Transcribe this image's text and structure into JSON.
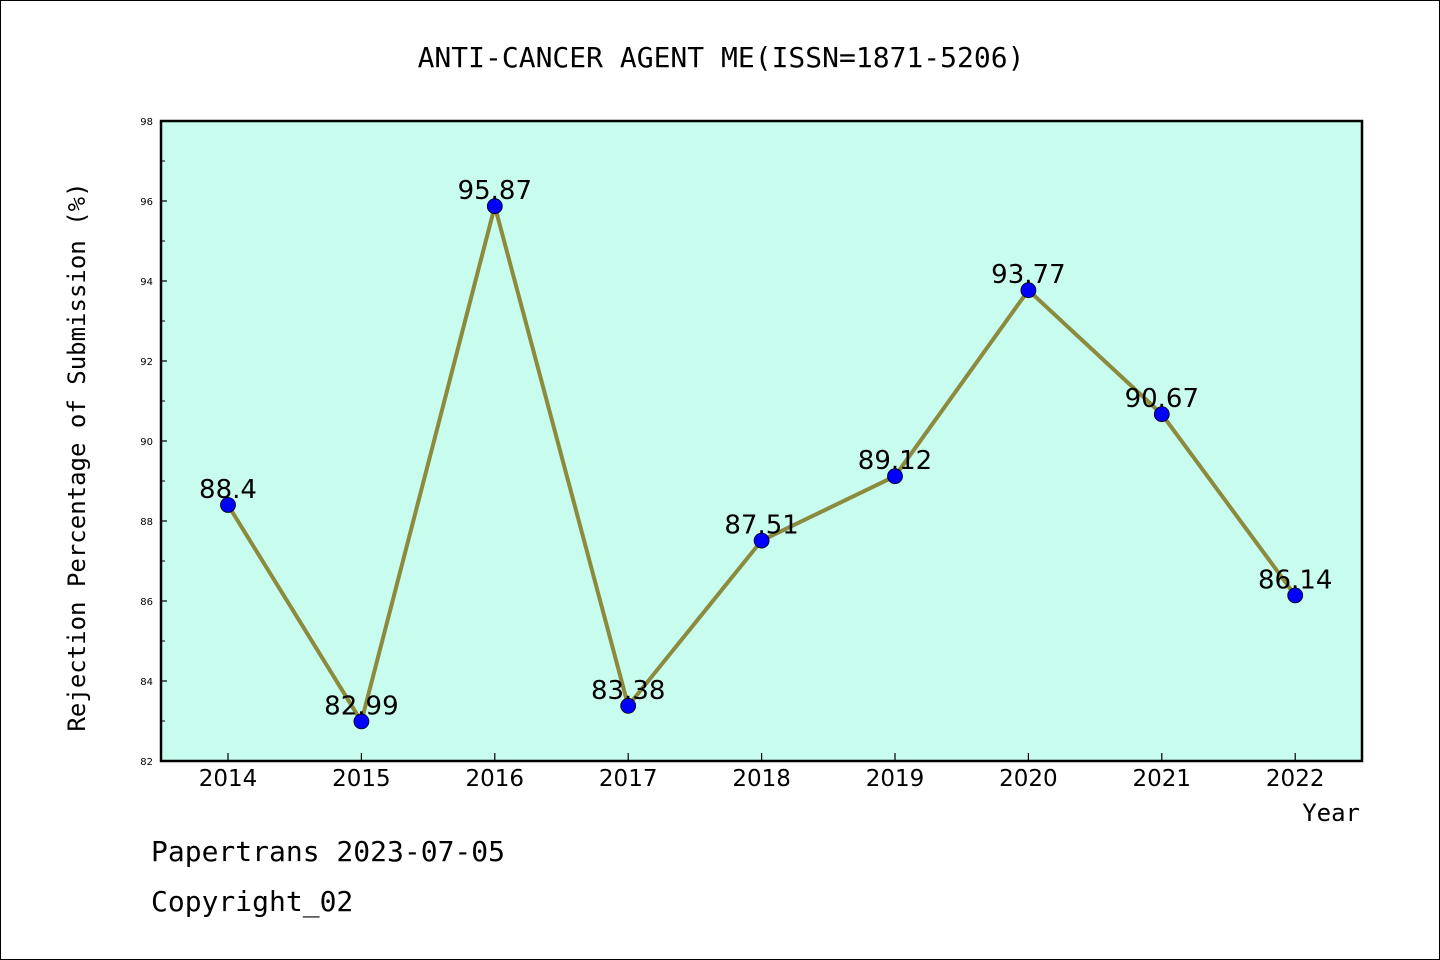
{
  "chart_data": {
    "type": "line",
    "title": "ANTI-CANCER AGENT ME(ISSN=1871-5206)",
    "xlabel": "Year",
    "ylabel": "Rejection Percentage of Submission (%)",
    "categories": [
      "2014",
      "2015",
      "2016",
      "2017",
      "2018",
      "2019",
      "2020",
      "2021",
      "2022"
    ],
    "values": [
      88.4,
      82.99,
      95.87,
      83.38,
      87.51,
      89.12,
      93.77,
      90.67,
      86.14
    ],
    "data_labels": [
      "88.4",
      "82.99",
      "95.87",
      "83.38",
      "87.51",
      "89.12",
      "93.77",
      "90.67",
      "86.14"
    ],
    "ylim": [
      82,
      98
    ],
    "y_ticks": [
      82,
      84,
      86,
      88,
      90,
      92,
      94,
      96,
      98
    ],
    "grid": false,
    "legend": "none",
    "colors": {
      "plot_background": "#c8fcee",
      "line": "#8c8a3c",
      "marker": "#0000ff"
    }
  },
  "footer": {
    "line1": "Papertrans 2023-07-05",
    "line2": "Copyright_02"
  }
}
